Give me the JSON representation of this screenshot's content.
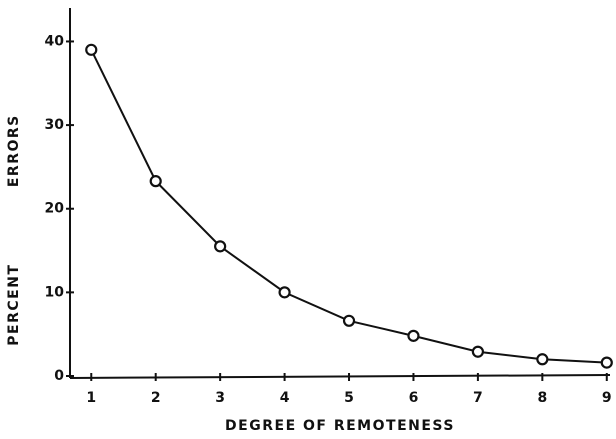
{
  "chart_data": {
    "type": "line",
    "x_label": "DEGREE OF REMOTENESS",
    "y_label": "PERCENT ERRORS",
    "x": [
      1,
      2,
      3,
      4,
      5,
      6,
      7,
      8,
      9
    ],
    "series": [
      {
        "color": "#111111",
        "values": [
          39,
          23.3,
          15.5,
          10,
          6.6,
          4.8,
          2.9,
          2.0,
          1.6
        ]
      }
    ],
    "xlim": [
      0.67,
      9.05
    ],
    "xticks": [
      1,
      2,
      3,
      4,
      5,
      6,
      7,
      8,
      9
    ],
    "ylim": [
      0,
      44
    ],
    "yticks": [
      0,
      10,
      20,
      30,
      40
    ],
    "grid": false
  }
}
